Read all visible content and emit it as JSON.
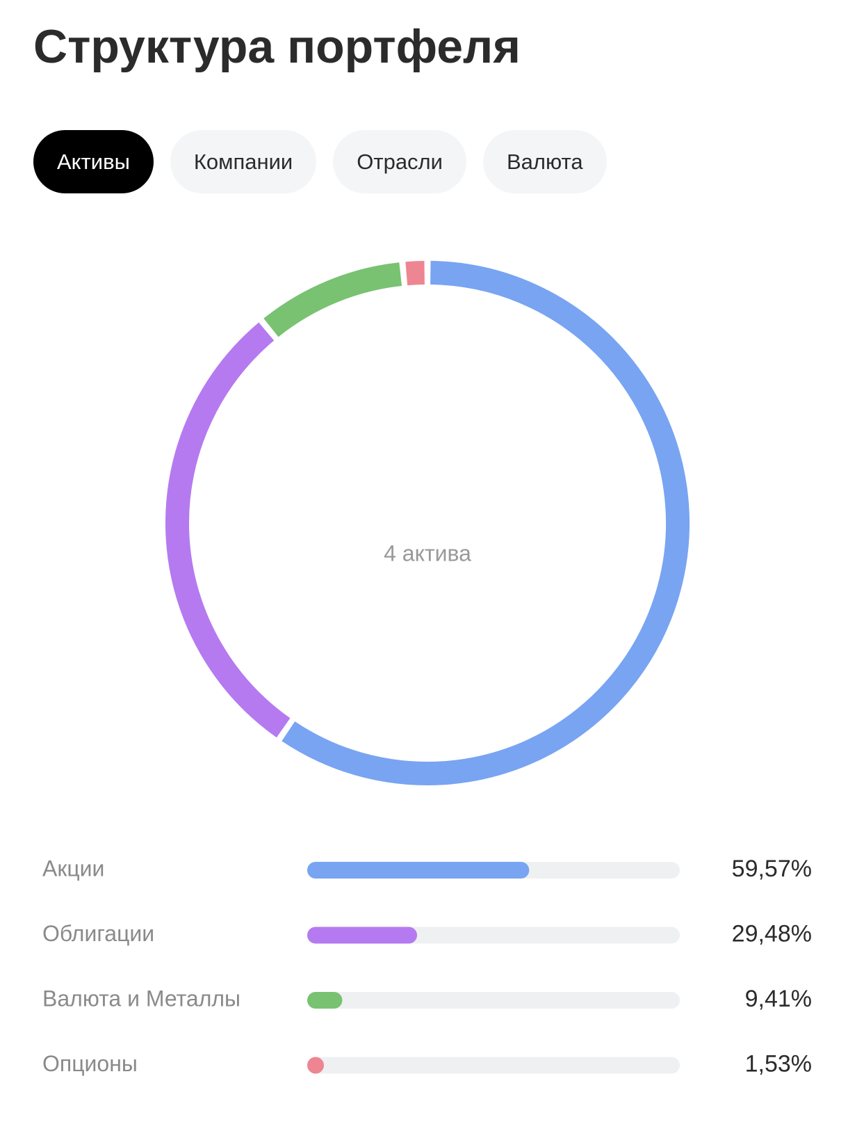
{
  "header": {
    "title": "Структура портфеля"
  },
  "tabs": {
    "items": [
      "Активы",
      "Компании",
      "Отрасли",
      "Валюта"
    ],
    "active": 0
  },
  "chart_data": {
    "type": "donut",
    "center_label": "4 актива",
    "categories": [
      "Акции",
      "Облигации",
      "Валюта и Металлы",
      "Опционы"
    ],
    "values": [
      59.57,
      29.48,
      9.41,
      1.53
    ],
    "value_labels": [
      "59,57%",
      "29,48%",
      "9,41%",
      "1,53%"
    ],
    "colors": [
      "#78a4f2",
      "#b57af0",
      "#78c272",
      "#ee8592"
    ]
  }
}
